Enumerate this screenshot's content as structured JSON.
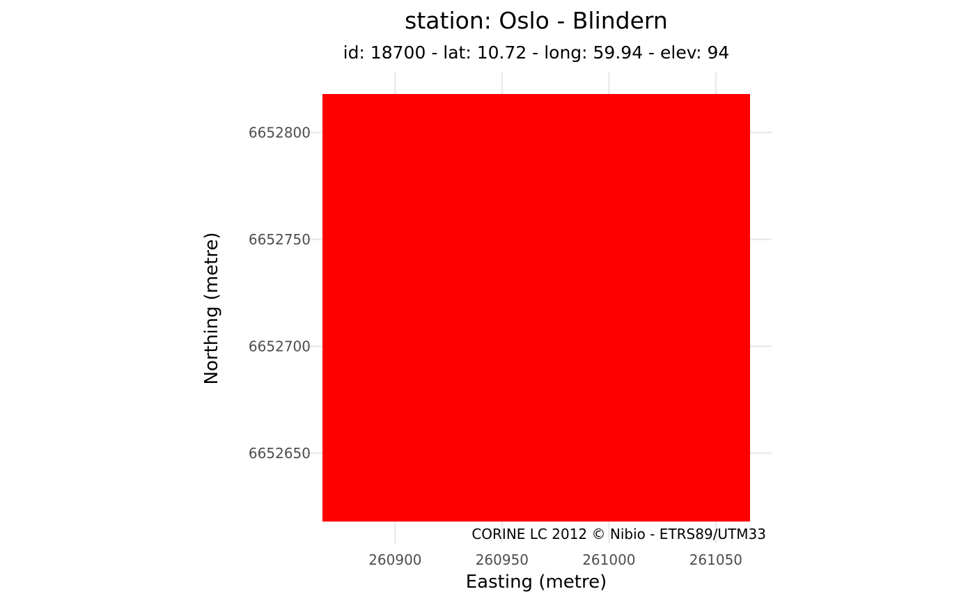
{
  "chart_data": {
    "type": "heatmap",
    "title": "station: Oslo - Blindern",
    "subtitle": "id: 18700 - lat: 10.72 - long: 59.94 - elev: 94",
    "xlabel": "Easting (metre)",
    "ylabel": "Northing (metre)",
    "caption": "CORINE LC 2012 © Nibio - ETRS89/UTM33",
    "xlim": [
      260866,
      261066
    ],
    "ylim": [
      6652618,
      6652818
    ],
    "x_ticks": [
      260900,
      260950,
      261000,
      261050
    ],
    "x_tick_labels": [
      "260900",
      "260950",
      "261000",
      "261050"
    ],
    "y_ticks": [
      6652650,
      6652700,
      6652750,
      6652800
    ],
    "y_tick_labels": [
      "6652650",
      "6652700",
      "6652750",
      "6652800"
    ],
    "tiles": [
      {
        "x_range": [
          260866,
          261066
        ],
        "y_range": [
          6652618,
          6652818
        ],
        "color": "#ff0000"
      }
    ],
    "grid": true,
    "legend": "none"
  }
}
